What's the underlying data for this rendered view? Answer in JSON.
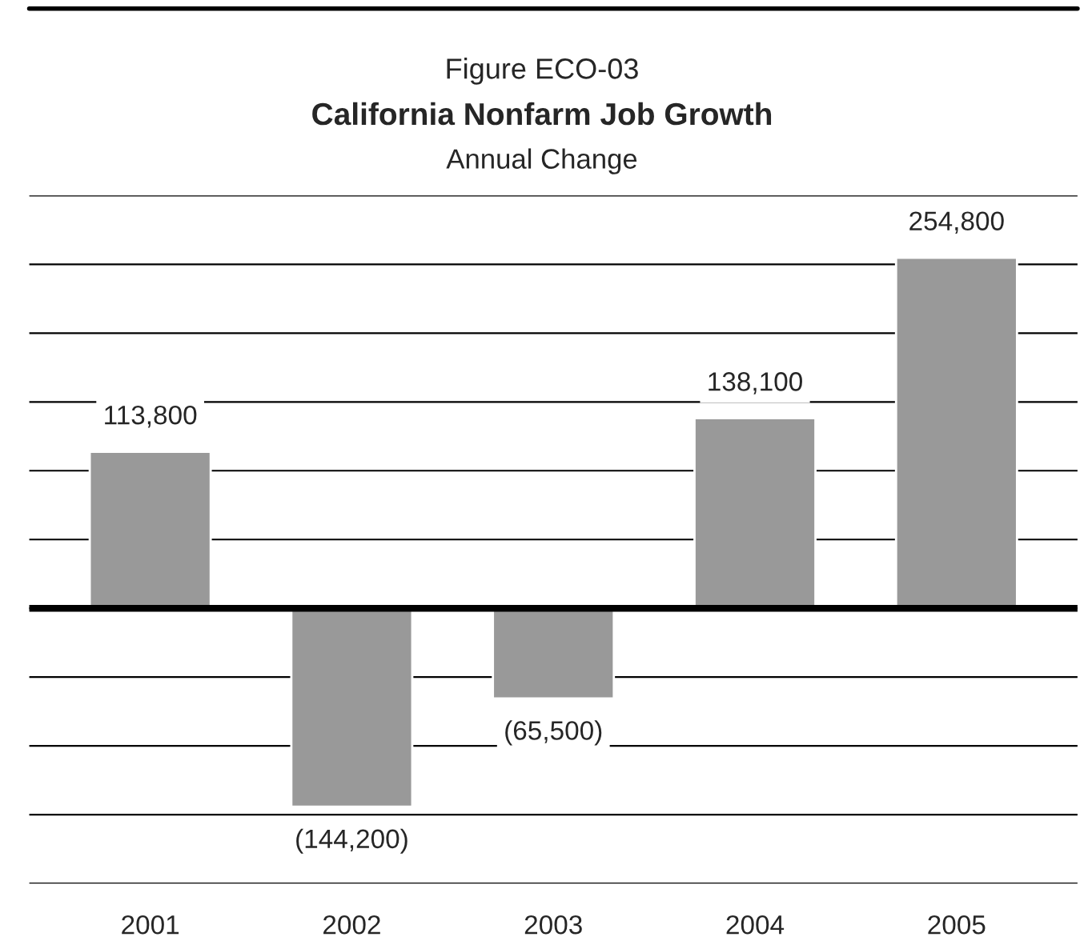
{
  "chart_data": {
    "type": "bar",
    "title": "California Nonfarm Job Growth",
    "subtitle": "Annual Change",
    "annotations": [
      "Figure ECO-03"
    ],
    "categories": [
      "2001",
      "2002",
      "2003",
      "2004",
      "2005"
    ],
    "values": [
      113800,
      -144200,
      -65500,
      138100,
      254800
    ],
    "value_labels": [
      "113,800",
      "(144,200)",
      "(65,500)",
      "138,100",
      "254,800"
    ],
    "color": "#999999",
    "ylim": [
      -200000,
      300000
    ],
    "yticks": [
      -200000,
      -150000,
      -100000,
      -50000,
      0,
      50000,
      100000,
      150000,
      200000,
      250000,
      300000
    ],
    "tick_labels": "x",
    "grid": "y",
    "ref_lines": [
      {
        "axis": "y",
        "value": 0,
        "color": "#000000"
      }
    ]
  }
}
